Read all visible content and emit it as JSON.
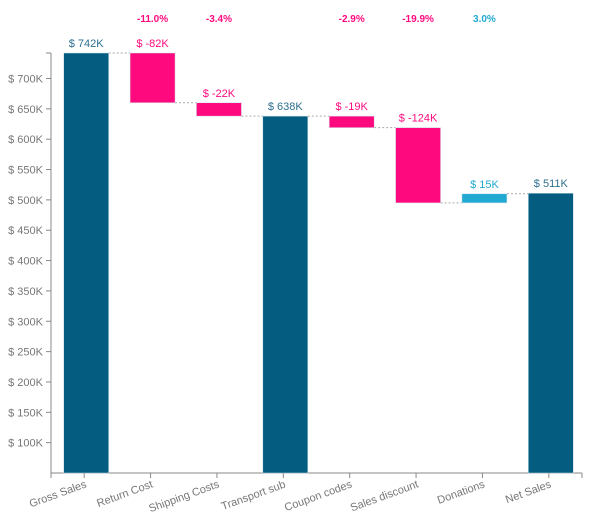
{
  "chart_data": {
    "type": "waterfall",
    "categories": [
      "Gross Sales",
      "Return Cost",
      "Shipping Costs",
      "Transport sub",
      "Coupon codes",
      "Sales discount",
      "Donations",
      "Net Sales"
    ],
    "values": [
      742000,
      -82000,
      -22000,
      638000,
      -19000,
      -124000,
      15000,
      511000
    ],
    "kinds": [
      "total",
      "delta",
      "delta",
      "total",
      "delta",
      "delta",
      "delta",
      "total"
    ],
    "value_labels": [
      "$ 742K",
      "$ -82K",
      "$ -22K",
      "$ 638K",
      "$ -19K",
      "$ -124K",
      "$ 15K",
      "$ 511K"
    ],
    "percent_labels": [
      "",
      "-11.0%",
      "-3.4%",
      "",
      "-2.9%",
      "-19.9%",
      "3.0%",
      ""
    ],
    "y_ticks": [
      100000,
      150000,
      200000,
      250000,
      300000,
      350000,
      400000,
      450000,
      500000,
      550000,
      600000,
      650000,
      700000
    ],
    "y_tick_labels": [
      "$ 100K",
      "$ 150K",
      "$ 200K",
      "$ 250K",
      "$ 300K",
      "$ 350K",
      "$ 400K",
      "$ 450K",
      "$ 500K",
      "$ 550K",
      "$ 600K",
      "$ 650K",
      "$ 700K"
    ],
    "ylim": [
      50000,
      742000
    ],
    "title": "",
    "xlabel": "",
    "ylabel": "",
    "grid": false,
    "colors": {
      "total": "#045c80",
      "decrease": "#ff0a7e",
      "increase": "#22a9d1",
      "total_label": "#2e6f8e",
      "axis_text": "#777777"
    }
  }
}
